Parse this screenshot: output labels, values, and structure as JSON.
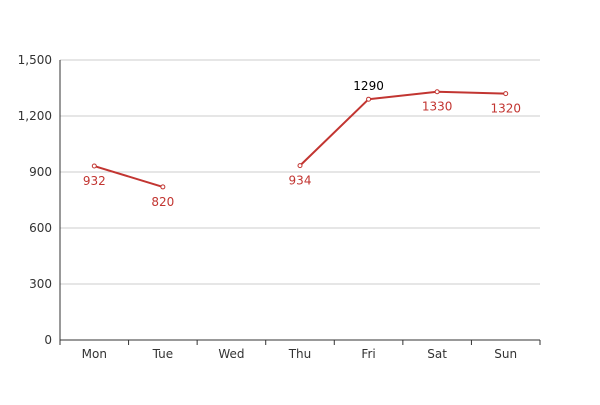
{
  "chart_data": {
    "type": "line",
    "categories": [
      "Mon",
      "Tue",
      "Wed",
      "Thu",
      "Fri",
      "Sat",
      "Sun"
    ],
    "series": [
      {
        "values": [
          932,
          820,
          null,
          934,
          1290,
          1330,
          1320
        ],
        "color": "#c23531"
      }
    ],
    "data_labels": [
      "932",
      "820",
      "",
      "934",
      "1290",
      "1330",
      "1320"
    ],
    "highlight_index": 4,
    "highlight_color": "#000000",
    "ylim": [
      0,
      1500
    ],
    "yticks": [
      {
        "value": 0,
        "label": "0"
      },
      {
        "value": 300,
        "label": "300"
      },
      {
        "value": 600,
        "label": "600"
      },
      {
        "value": 900,
        "label": "900"
      },
      {
        "value": 1200,
        "label": "1,200"
      },
      {
        "value": 1500,
        "label": "1,500"
      }
    ],
    "grid": true,
    "legend": "none",
    "title": "",
    "xlabel": "",
    "ylabel": ""
  },
  "colors": {
    "axis": "#333333",
    "grid": "#cccccc",
    "tick_text": "#333333"
  }
}
